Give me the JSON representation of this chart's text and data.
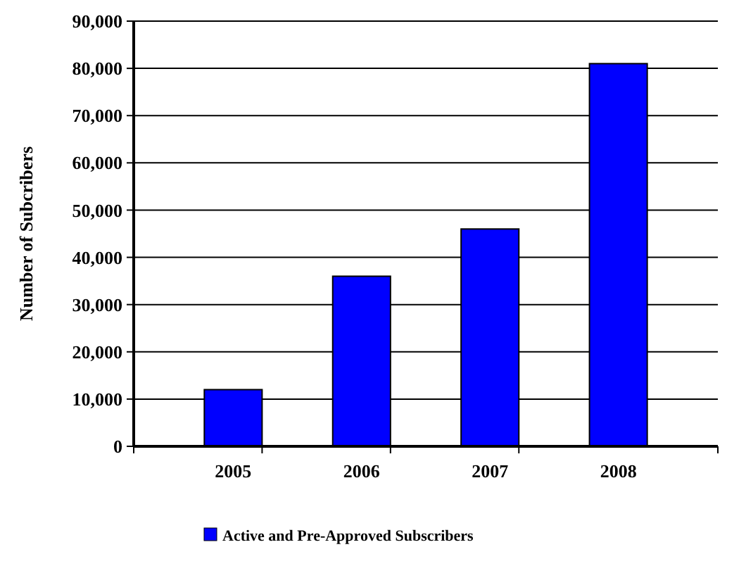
{
  "chart_data": {
    "type": "bar",
    "ylabel": "Number of Subcribers",
    "categories": [
      "2005",
      "2006",
      "2007",
      "2008"
    ],
    "series": [
      {
        "name": "Active and Pre-Approved Subscribers",
        "color": "#0000ff",
        "values": [
          12000,
          36000,
          46000,
          81000
        ]
      }
    ],
    "ylim": [
      0,
      90000
    ],
    "yticks": [
      {
        "value": 0,
        "label": "0"
      },
      {
        "value": 10000,
        "label": "10,000"
      },
      {
        "value": 20000,
        "label": "20,000"
      },
      {
        "value": 30000,
        "label": "30,000"
      },
      {
        "value": 40000,
        "label": "40,000"
      },
      {
        "value": 50000,
        "label": "50,000"
      },
      {
        "value": 60000,
        "label": "60,000"
      },
      {
        "value": 70000,
        "label": "70,000"
      },
      {
        "value": 80000,
        "label": "80,000"
      },
      {
        "value": 90000,
        "label": "90,000"
      }
    ],
    "grid": "y",
    "legend": "bottom"
  }
}
